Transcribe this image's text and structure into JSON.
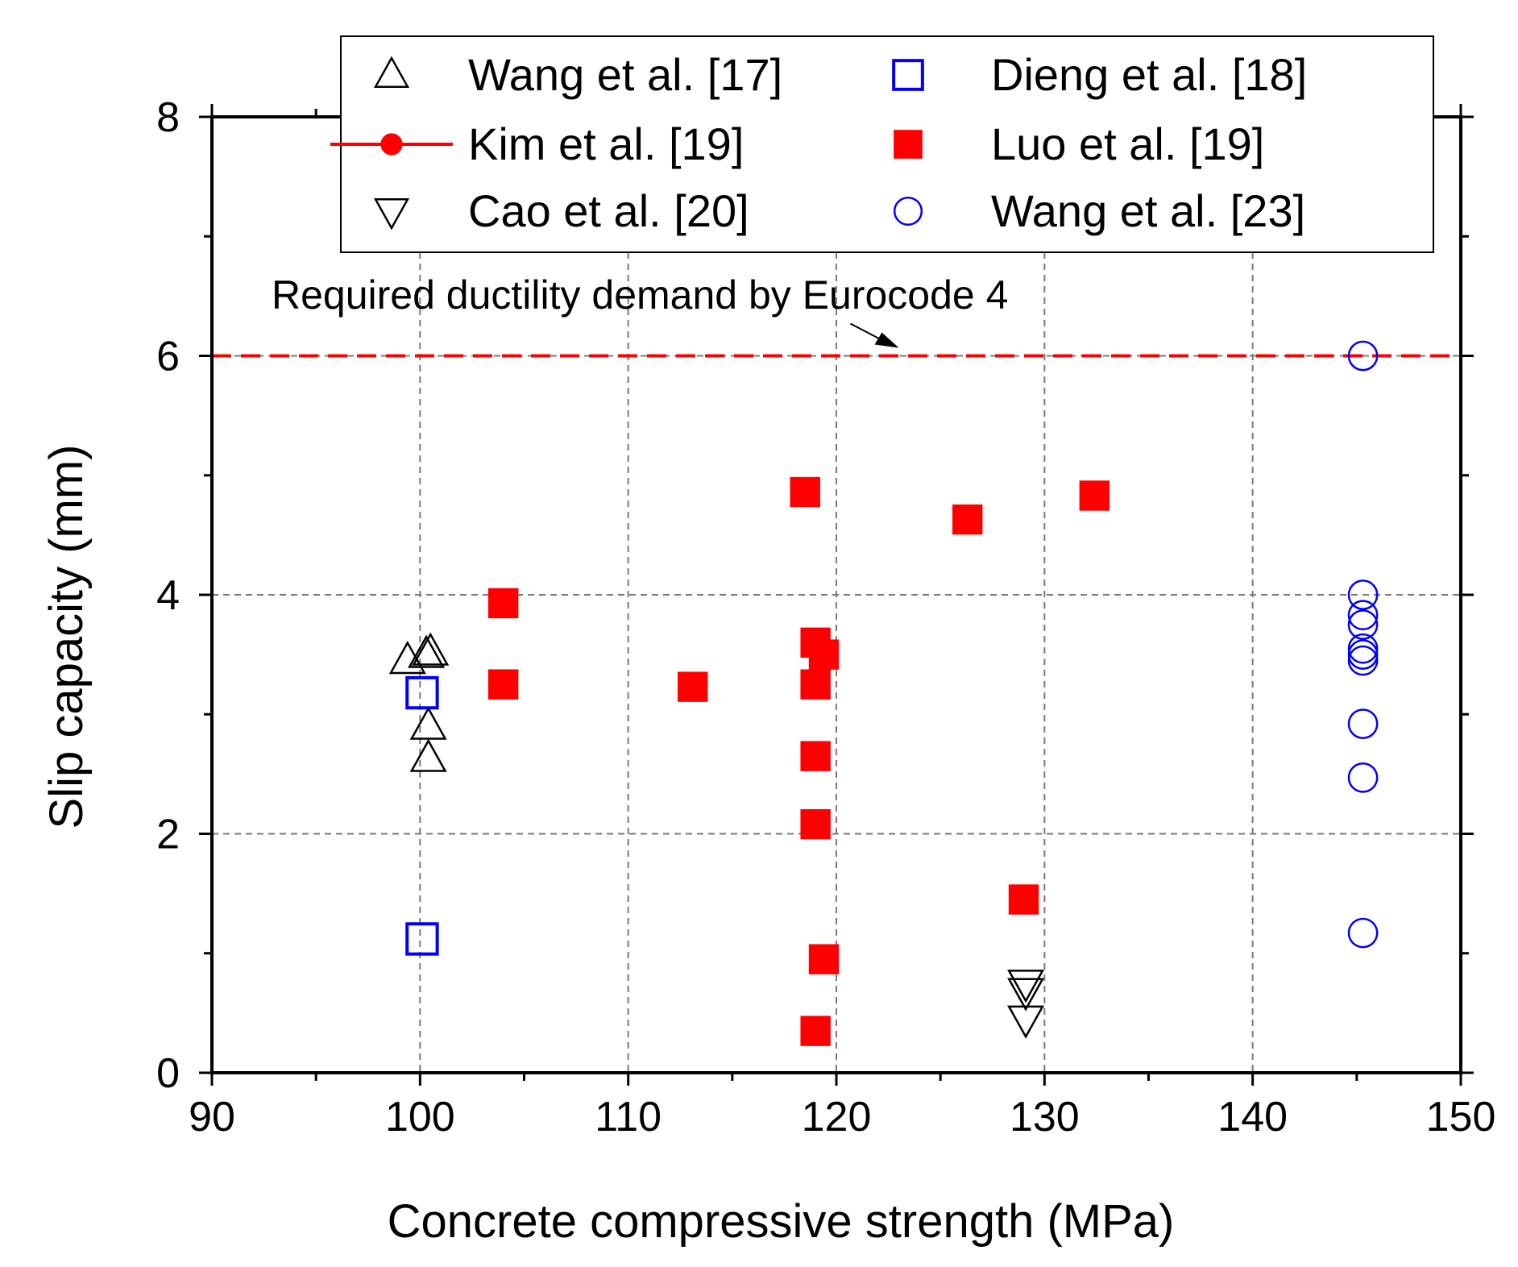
{
  "chart_data": {
    "type": "scatter",
    "title": "",
    "xlabel": "Concrete compressive strength (MPa)",
    "ylabel": "Slip capacity (mm)",
    "xlim": [
      90,
      150
    ],
    "ylim": [
      0,
      8
    ],
    "xticks": [
      90,
      100,
      110,
      120,
      130,
      140,
      150
    ],
    "yticks": [
      0,
      2,
      4,
      6,
      8
    ],
    "x_minor_step": 5,
    "y_minor_step": 1,
    "grid": true,
    "legend_position": "top",
    "reference_line": {
      "y": 6,
      "style": "dashed",
      "color": "#ff0000",
      "annotation": "Required ductility demand by Eurocode 4",
      "arrow_target_x": 123
    },
    "series": [
      {
        "name": "Wang et al. [17]",
        "marker": "triangle-up-open",
        "color": "#000000",
        "points": [
          [
            99.4,
            3.45
          ],
          [
            100.3,
            3.5
          ],
          [
            100.5,
            3.52
          ],
          [
            100.4,
            2.9
          ],
          [
            100.4,
            2.63
          ]
        ]
      },
      {
        "name": "Dieng et al. [18]",
        "marker": "square-open",
        "color": "#0000ff",
        "points": [
          [
            100.1,
            3.18
          ],
          [
            100.1,
            1.12
          ]
        ]
      },
      {
        "name": "Kim et al. [19]",
        "marker": "line-circle",
        "color": "#ff0000",
        "points": []
      },
      {
        "name": "Luo et al. [19]",
        "marker": "square-filled",
        "color": "#ff0000",
        "points": [
          [
            104,
            3.93
          ],
          [
            104,
            3.25
          ],
          [
            113.1,
            3.23
          ],
          [
            118.5,
            4.86
          ],
          [
            119.0,
            3.6
          ],
          [
            119.4,
            3.5
          ],
          [
            119.0,
            3.25
          ],
          [
            119.0,
            2.65
          ],
          [
            119.0,
            2.08
          ],
          [
            119.4,
            0.95
          ],
          [
            119.0,
            0.35
          ],
          [
            126.3,
            4.63
          ],
          [
            129.0,
            1.45
          ],
          [
            132.4,
            4.83
          ]
        ]
      },
      {
        "name": "Cao et al. [20]",
        "marker": "triangle-down-open",
        "color": "#000000",
        "points": [
          [
            129.1,
            0.75
          ],
          [
            129.1,
            0.68
          ],
          [
            129.1,
            0.45
          ]
        ]
      },
      {
        "name": "Wang et al. [23]",
        "marker": "circle-open",
        "color": "#0000ff",
        "points": [
          [
            145.3,
            6.0
          ],
          [
            145.3,
            4.0
          ],
          [
            145.3,
            3.75
          ],
          [
            145.3,
            3.83
          ],
          [
            145.3,
            3.55
          ],
          [
            145.3,
            3.45
          ],
          [
            145.3,
            3.5
          ],
          [
            145.3,
            2.92
          ],
          [
            145.3,
            2.47
          ],
          [
            145.3,
            1.17
          ]
        ]
      }
    ]
  }
}
